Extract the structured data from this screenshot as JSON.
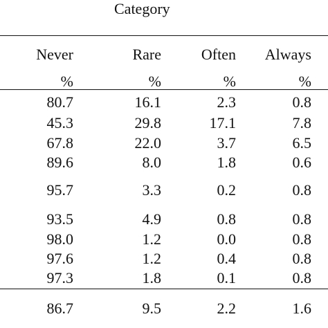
{
  "table": {
    "group_header": "Category",
    "columns": [
      "Never",
      "Rare",
      "Often",
      "Always"
    ],
    "units": [
      "%",
      "%",
      "%",
      "%"
    ],
    "rows": [
      [
        "80.7",
        "16.1",
        "2.3",
        "0.8"
      ],
      [
        "45.3",
        "29.8",
        "17.1",
        "7.8"
      ],
      [
        "67.8",
        "22.0",
        "3.7",
        "6.5"
      ],
      [
        "89.6",
        "8.0",
        "1.8",
        "0.6"
      ],
      [
        "95.7",
        "3.3",
        "0.2",
        "0.8"
      ],
      [
        "93.5",
        "4.9",
        "0.8",
        "0.8"
      ],
      [
        "98.0",
        "1.2",
        "0.0",
        "0.8"
      ],
      [
        "97.6",
        "1.2",
        "0.4",
        "0.8"
      ],
      [
        "97.3",
        "1.8",
        "0.1",
        "0.8"
      ]
    ],
    "total": [
      "86.7",
      "9.5",
      "2.2",
      "1.6"
    ]
  }
}
